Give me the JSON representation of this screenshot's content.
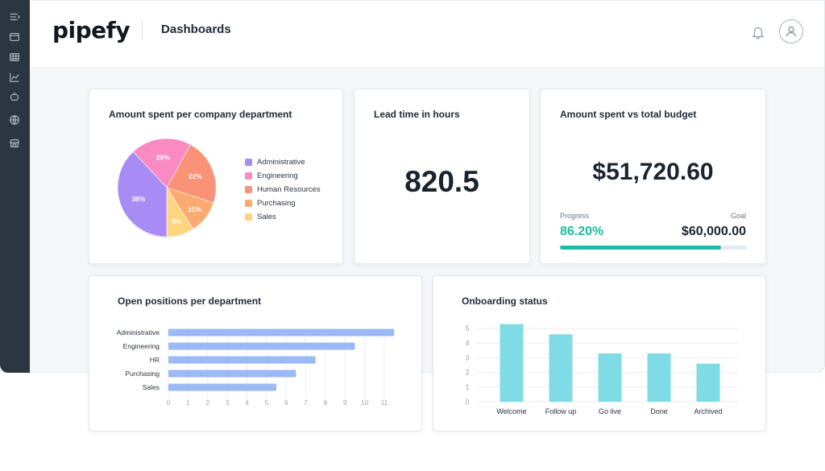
{
  "app": {
    "logo": "pipefy",
    "page_title": "Dashboards"
  },
  "sidebar": {
    "items": [
      {
        "icon": "menu-icon"
      },
      {
        "icon": "window-icon"
      },
      {
        "icon": "table-icon"
      },
      {
        "icon": "chart-line-icon"
      },
      {
        "icon": "robot-icon"
      },
      {
        "icon": "globe-icon"
      },
      {
        "icon": "store-icon"
      }
    ]
  },
  "header": {
    "notifications_icon": "bell-icon",
    "profile_icon": "user-icon"
  },
  "cards": {
    "pie": {
      "title": "Amount spent per company department"
    },
    "lead_time": {
      "title": "Lead time in hours",
      "value": "820.5"
    },
    "budget": {
      "title": "Amount spent vs total budget",
      "value": "$51,720.60",
      "progress_label": "Progress",
      "progress_value": "86.20%",
      "progress_fraction": 0.862,
      "goal_label": "Goal",
      "goal_value": "$60,000.00"
    },
    "open_positions": {
      "title": "Open positions per department"
    },
    "onboarding": {
      "title": "Onboarding status"
    }
  },
  "chart_data": [
    {
      "type": "pie",
      "categories": [
        "Administrative",
        "Engineering",
        "Human Resources",
        "Purchasing",
        "Sales"
      ],
      "values": [
        38,
        20,
        22,
        11,
        9
      ],
      "labels": [
        "38%",
        "20%",
        "22%",
        "11%",
        "9%"
      ],
      "colors": [
        "#a98bf5",
        "#f98ac2",
        "#f99277",
        "#fbab72",
        "#fdd57e"
      ],
      "legend_placement": "right"
    },
    {
      "type": "bar",
      "orientation": "horizontal",
      "categories": [
        "Administrative",
        "Engineering",
        "HR",
        "Purchasing",
        "Sales"
      ],
      "values": [
        11.5,
        9.5,
        7.5,
        6.5,
        5.5
      ],
      "xlim": [
        0,
        11
      ],
      "x_ticks": [
        "0",
        "1",
        "2",
        "3",
        "4",
        "5",
        "6",
        "7",
        "8",
        "9",
        "10",
        "11"
      ],
      "color": "#9ab9f5",
      "grid": true
    },
    {
      "type": "bar",
      "categories": [
        "Welcome",
        "Follow up",
        "Go live",
        "Done",
        "Archived"
      ],
      "values": [
        5.3,
        4.6,
        3.3,
        3.3,
        2.6
      ],
      "ylim": [
        0,
        5
      ],
      "y_ticks": [
        "0",
        "1",
        "2",
        "3",
        "4",
        "5"
      ],
      "color": "#7fdbe6",
      "grid": true
    }
  ]
}
